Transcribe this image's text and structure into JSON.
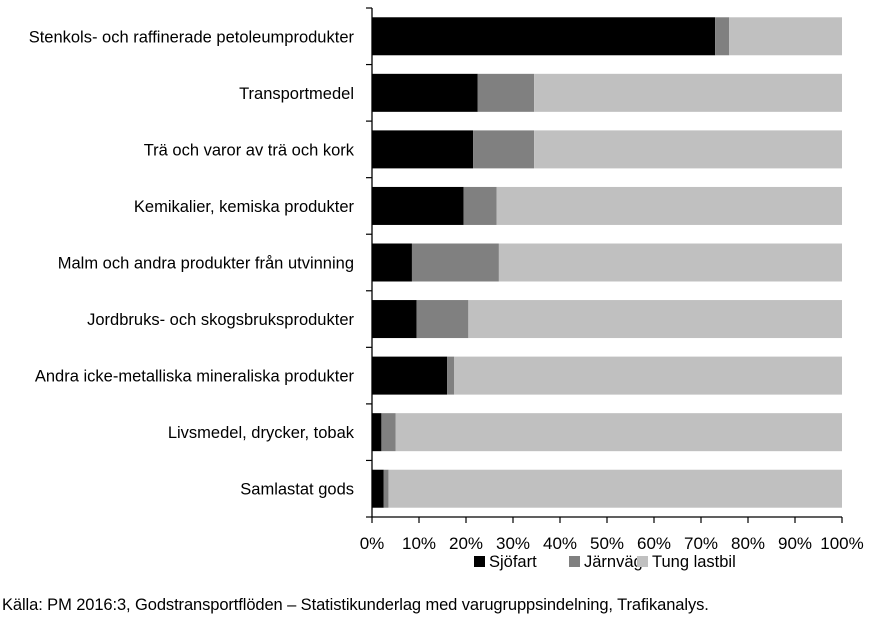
{
  "chart_data": {
    "type": "bar",
    "orientation": "horizontal",
    "stacked": true,
    "percent": true,
    "categories": [
      "Stenkols- och raffinerade petoleumprodukter",
      "Transportmedel",
      "Trä och varor av trä och kork",
      "Kemikalier, kemiska produkter",
      "Malm och andra produkter från utvinning",
      "Jordbruks- och skogsbruksprodukter",
      "Andra icke-metalliska mineraliska produkter",
      "Livsmedel, drycker, tobak",
      "Samlastat gods"
    ],
    "series": [
      {
        "name": "Sjöfart",
        "color": "#000000",
        "values": [
          73,
          22.5,
          21.5,
          19.5,
          8.5,
          9.5,
          16,
          2,
          2.5
        ]
      },
      {
        "name": "Järnväg",
        "color": "#808080",
        "values": [
          3,
          12,
          13,
          7,
          18.5,
          11,
          1.5,
          3,
          1
        ]
      },
      {
        "name": "Tung lastbil",
        "color": "#c0c0c0",
        "values": [
          24,
          65.5,
          65.5,
          73.5,
          73,
          79.5,
          82.5,
          95,
          96.5
        ]
      }
    ],
    "x_ticks": [
      "0%",
      "10%",
      "20%",
      "30%",
      "40%",
      "50%",
      "60%",
      "70%",
      "80%",
      "90%",
      "100%"
    ],
    "xlim": [
      0,
      100
    ],
    "grid": false,
    "legend_position": "bottom-right",
    "title": "",
    "xlabel": "",
    "ylabel": ""
  },
  "source_text": "Källa: PM 2016:3, Godstransportflöden – Statistikunderlag med varugruppsindelning, Trafikanalys."
}
